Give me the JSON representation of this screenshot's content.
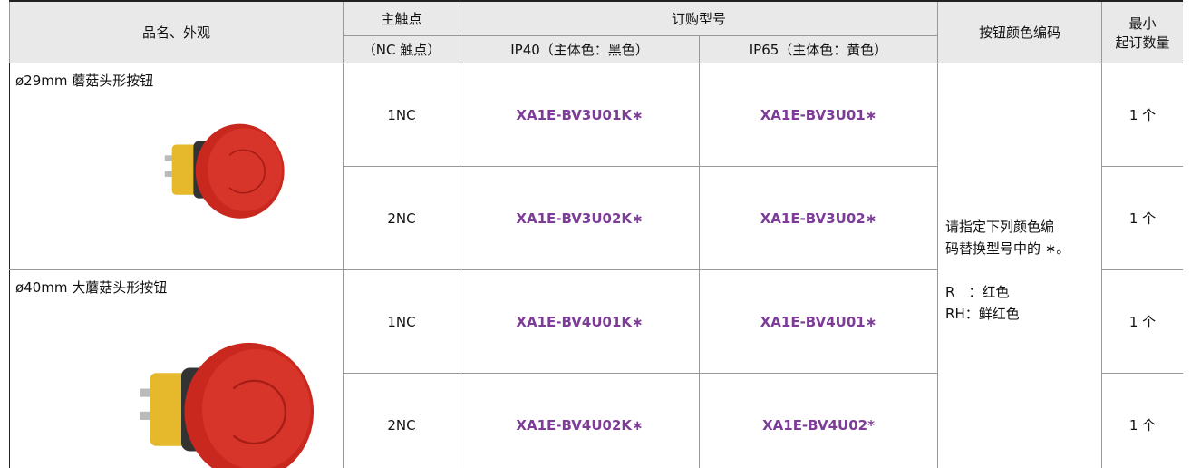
{
  "header": {
    "product": "品名、外观",
    "contact": "主触点",
    "contact_sub": "（NC 触点）",
    "order": "订购型号",
    "ip40": "IP40（主体色：黑色）",
    "ip65": "IP65（主体色：黄色）",
    "color_code": "按钮颜色编码",
    "min_order_1": "最小",
    "min_order_2": "起订数量"
  },
  "groups": [
    {
      "name": "ø29mm 蘑菇头形按钮",
      "rows": [
        {
          "contact": "1NC",
          "ip40": "XA1E-BV3U01K∗",
          "ip65": "XA1E-BV3U01∗",
          "min": "1 个"
        },
        {
          "contact": "2NC",
          "ip40": "XA1E-BV3U02K∗",
          "ip65": "XA1E-BV3U02∗",
          "min": "1 个"
        }
      ]
    },
    {
      "name": "ø40mm 大蘑菇头形按钮",
      "rows": [
        {
          "contact": "1NC",
          "ip40": "XA1E-BV4U01K∗",
          "ip65": "XA1E-BV4U01∗",
          "min": "1 个"
        },
        {
          "contact": "2NC",
          "ip40": "XA1E-BV4U02K∗",
          "ip65": "XA1E-BV4U02*",
          "min": "1 个"
        }
      ]
    }
  ],
  "color_note": {
    "text_1": "请指定下列颜色编",
    "text_2": "码替换型号中的 ∗。",
    "r": "R　：红色",
    "rh": "RH：鲜红色"
  }
}
